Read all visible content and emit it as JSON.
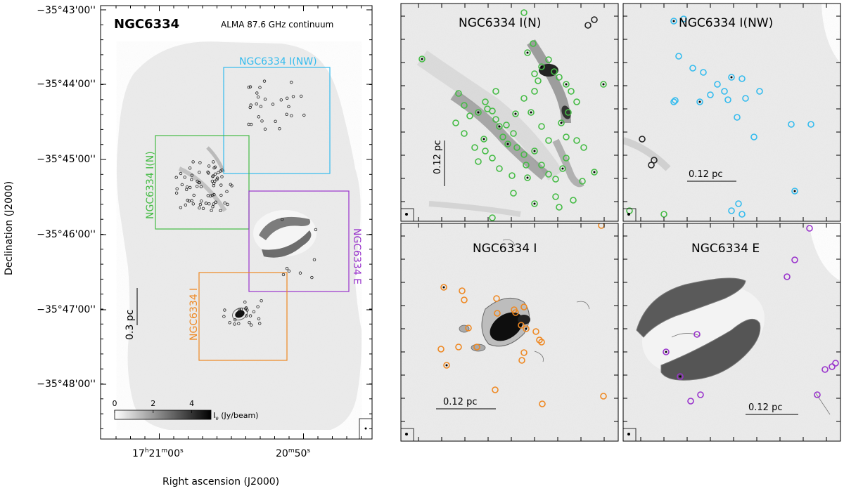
{
  "main": {
    "object_name": "NGC6334",
    "subtitle": "ALMA 87.6 GHz continuum",
    "ylabel": "Declination (J2000)",
    "xlabel": "Right ascension (J2000)",
    "dec_ticks": [
      "−35°43'00''",
      "−35°44'00''",
      "−35°45'00''",
      "−35°46'00''",
      "−35°47'00''",
      "−35°48'00''"
    ],
    "ra_tick_1": {
      "h": "17",
      "hu": "h",
      "m": "21",
      "mu": "m",
      "s": "00",
      "su": "s"
    },
    "ra_tick_2": {
      "m": "20",
      "mu": "m",
      "s": "50",
      "su": "s"
    },
    "scalebar_label": "0.3 pc",
    "colorbar_ticks": [
      "0",
      "2",
      "4"
    ],
    "colorbar_label_main": "I",
    "colorbar_label_sub": "ν",
    "colorbar_label_unit": " (Jy/beam)",
    "colorbar_range": [
      0,
      5
    ],
    "regions": [
      {
        "label": "NGC6334 I(NW)",
        "color": "#33bbee"
      },
      {
        "label": "NGC6334 I(N)",
        "color": "#44bb44"
      },
      {
        "label": "NGC6334 E",
        "color": "#9933cc"
      },
      {
        "label": "NGC6334 I",
        "color": "#ee8822"
      }
    ]
  },
  "panels": [
    {
      "title": "NGC6334 I(N)",
      "scalebar": "0.12 pc",
      "marker_color": "#44bb44"
    },
    {
      "title": "NGC6334 I(NW)",
      "scalebar": "0.12 pc",
      "marker_color": "#33bbee"
    },
    {
      "title": "NGC6334 I",
      "scalebar": "0.12 pc",
      "marker_color": "#ee8822"
    },
    {
      "title": "NGC6334 E",
      "scalebar": "0.12 pc",
      "marker_color": "#9933cc"
    }
  ]
}
